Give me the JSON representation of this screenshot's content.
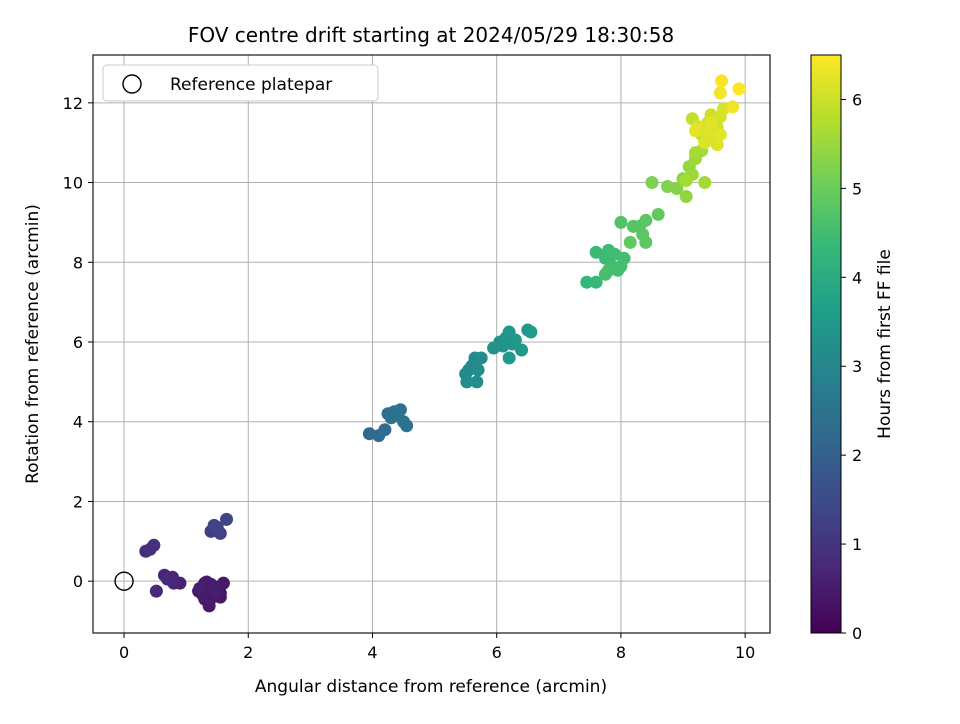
{
  "chart_data": {
    "type": "scatter",
    "title": "FOV centre drift starting at 2024/05/29 18:30:58",
    "xlabel": "Angular distance from reference (arcmin)",
    "ylabel": "Rotation from reference (arcmin)",
    "xlim": [
      -0.5,
      10.4
    ],
    "ylim": [
      -1.3,
      13.2
    ],
    "xticks": [
      0,
      2,
      4,
      6,
      8,
      10
    ],
    "yticks": [
      0,
      2,
      4,
      6,
      8,
      10,
      12
    ],
    "grid": true,
    "legend": {
      "position": "top-left",
      "entries": [
        "Reference platepar"
      ]
    },
    "reference_point": {
      "x": 0,
      "y": 0,
      "label": "Reference platepar"
    },
    "colorbar": {
      "label": "Hours from first FF file",
      "range": [
        0,
        6.5
      ],
      "ticks": [
        0,
        1,
        2,
        3,
        4,
        5,
        6
      ],
      "colormap": "viridis"
    },
    "colormap_stops": [
      "#440154",
      "#482878",
      "#3e4989",
      "#31688e",
      "#26828e",
      "#1f9e89",
      "#35b779",
      "#6ece58",
      "#b5de2b",
      "#fde725"
    ],
    "series": [
      {
        "points": [
          [
            1.3,
            -0.05,
            0.1
          ],
          [
            1.35,
            -0.15,
            0.15
          ],
          [
            1.45,
            -0.2,
            0.2
          ],
          [
            1.25,
            -0.25,
            0.25
          ],
          [
            1.4,
            -0.3,
            0.28
          ],
          [
            1.55,
            -0.3,
            0.3
          ],
          [
            1.35,
            -0.1,
            0.32
          ],
          [
            1.2,
            -0.25,
            0.35
          ],
          [
            1.5,
            -0.15,
            0.36
          ],
          [
            1.3,
            -0.45,
            0.38
          ],
          [
            1.42,
            -0.4,
            0.4
          ],
          [
            1.55,
            -0.4,
            0.42
          ],
          [
            1.6,
            -0.05,
            0.44
          ],
          [
            1.37,
            -0.62,
            0.46
          ],
          [
            1.27,
            -0.35,
            0.48
          ],
          [
            1.48,
            -0.28,
            0.5
          ],
          [
            1.33,
            -0.02,
            0.52
          ],
          [
            1.4,
            -0.08,
            0.54
          ],
          [
            1.22,
            -0.18,
            0.56
          ],
          [
            0.9,
            -0.05,
            0.62
          ],
          [
            0.78,
            0.1,
            0.66
          ],
          [
            0.65,
            0.15,
            0.68
          ],
          [
            0.8,
            -0.05,
            0.7
          ],
          [
            0.7,
            0.05,
            0.72
          ],
          [
            0.52,
            -0.25,
            0.75
          ],
          [
            0.35,
            0.75,
            0.85
          ],
          [
            0.42,
            0.8,
            0.88
          ],
          [
            0.48,
            0.9,
            0.9
          ],
          [
            1.4,
            1.25,
            1.2
          ],
          [
            1.5,
            1.35,
            1.25
          ],
          [
            1.55,
            1.2,
            1.3
          ],
          [
            1.45,
            1.4,
            1.32
          ],
          [
            1.65,
            1.55,
            1.38
          ],
          [
            3.95,
            3.7,
            2.2
          ],
          [
            4.1,
            3.65,
            2.25
          ],
          [
            4.2,
            3.8,
            2.3
          ],
          [
            4.25,
            4.2,
            2.35
          ],
          [
            4.3,
            4.1,
            2.38
          ],
          [
            4.35,
            4.25,
            2.4
          ],
          [
            4.4,
            4.15,
            2.42
          ],
          [
            4.45,
            4.3,
            2.44
          ],
          [
            4.5,
            4.0,
            2.46
          ],
          [
            4.55,
            3.9,
            2.48
          ],
          [
            5.5,
            5.2,
            3.05
          ],
          [
            5.55,
            5.3,
            3.08
          ],
          [
            5.6,
            5.4,
            3.1
          ],
          [
            5.65,
            5.6,
            3.12
          ],
          [
            5.7,
            5.3,
            3.14
          ],
          [
            5.75,
            5.6,
            3.16
          ],
          [
            5.52,
            5.0,
            3.18
          ],
          [
            5.68,
            5.0,
            3.2
          ],
          [
            5.95,
            5.85,
            3.3
          ],
          [
            6.05,
            6.0,
            3.32
          ],
          [
            6.1,
            5.9,
            3.35
          ],
          [
            6.15,
            6.1,
            3.38
          ],
          [
            6.2,
            6.25,
            3.4
          ],
          [
            6.25,
            5.95,
            3.42
          ],
          [
            6.3,
            6.05,
            3.44
          ],
          [
            6.4,
            5.8,
            3.46
          ],
          [
            6.5,
            6.3,
            3.48
          ],
          [
            6.55,
            6.25,
            3.5
          ],
          [
            6.2,
            5.6,
            3.52
          ],
          [
            7.45,
            7.5,
            4.3
          ],
          [
            7.6,
            7.5,
            4.35
          ],
          [
            7.6,
            8.25,
            4.4
          ],
          [
            7.75,
            8.1,
            4.42
          ],
          [
            7.8,
            8.3,
            4.44
          ],
          [
            7.85,
            7.9,
            4.46
          ],
          [
            7.9,
            8.2,
            4.48
          ],
          [
            7.95,
            7.8,
            4.5
          ],
          [
            8.05,
            8.1,
            4.52
          ],
          [
            8.0,
            7.9,
            4.54
          ],
          [
            7.75,
            7.7,
            4.56
          ],
          [
            7.8,
            7.8,
            4.58
          ],
          [
            8.0,
            9.0,
            4.7
          ],
          [
            8.2,
            8.9,
            4.75
          ],
          [
            8.3,
            8.9,
            4.78
          ],
          [
            8.4,
            9.05,
            4.8
          ],
          [
            8.35,
            8.7,
            4.82
          ],
          [
            8.4,
            8.5,
            4.84
          ],
          [
            8.15,
            8.5,
            4.86
          ],
          [
            8.6,
            9.2,
            4.9
          ],
          [
            8.5,
            10.0,
            5.2
          ],
          [
            8.75,
            9.9,
            5.25
          ],
          [
            8.9,
            9.85,
            5.3
          ],
          [
            9.0,
            10.1,
            5.35
          ],
          [
            9.05,
            9.65,
            5.4
          ],
          [
            9.1,
            10.4,
            5.45
          ],
          [
            9.15,
            10.2,
            5.5
          ],
          [
            9.2,
            10.6,
            5.55
          ],
          [
            9.3,
            10.8,
            5.58
          ],
          [
            9.35,
            10.0,
            5.6
          ],
          [
            9.05,
            10.05,
            5.62
          ],
          [
            9.2,
            10.75,
            5.64
          ],
          [
            9.15,
            11.6,
            5.9
          ],
          [
            9.3,
            11.2,
            5.95
          ],
          [
            9.4,
            11.5,
            6.0
          ],
          [
            9.45,
            11.7,
            6.02
          ],
          [
            9.5,
            11.1,
            6.05
          ],
          [
            9.55,
            11.4,
            6.08
          ],
          [
            9.6,
            11.65,
            6.1
          ],
          [
            9.65,
            11.85,
            6.12
          ],
          [
            9.35,
            11.0,
            6.14
          ],
          [
            9.25,
            11.4,
            6.16
          ],
          [
            9.4,
            11.2,
            6.18
          ],
          [
            9.55,
            10.95,
            6.2
          ],
          [
            9.6,
            11.2,
            6.22
          ],
          [
            9.45,
            11.5,
            6.24
          ],
          [
            9.2,
            11.3,
            6.26
          ],
          [
            9.6,
            12.25,
            6.4
          ],
          [
            9.62,
            12.55,
            6.45
          ],
          [
            9.9,
            12.35,
            6.48
          ],
          [
            9.8,
            11.9,
            6.35
          ]
        ]
      }
    ]
  }
}
